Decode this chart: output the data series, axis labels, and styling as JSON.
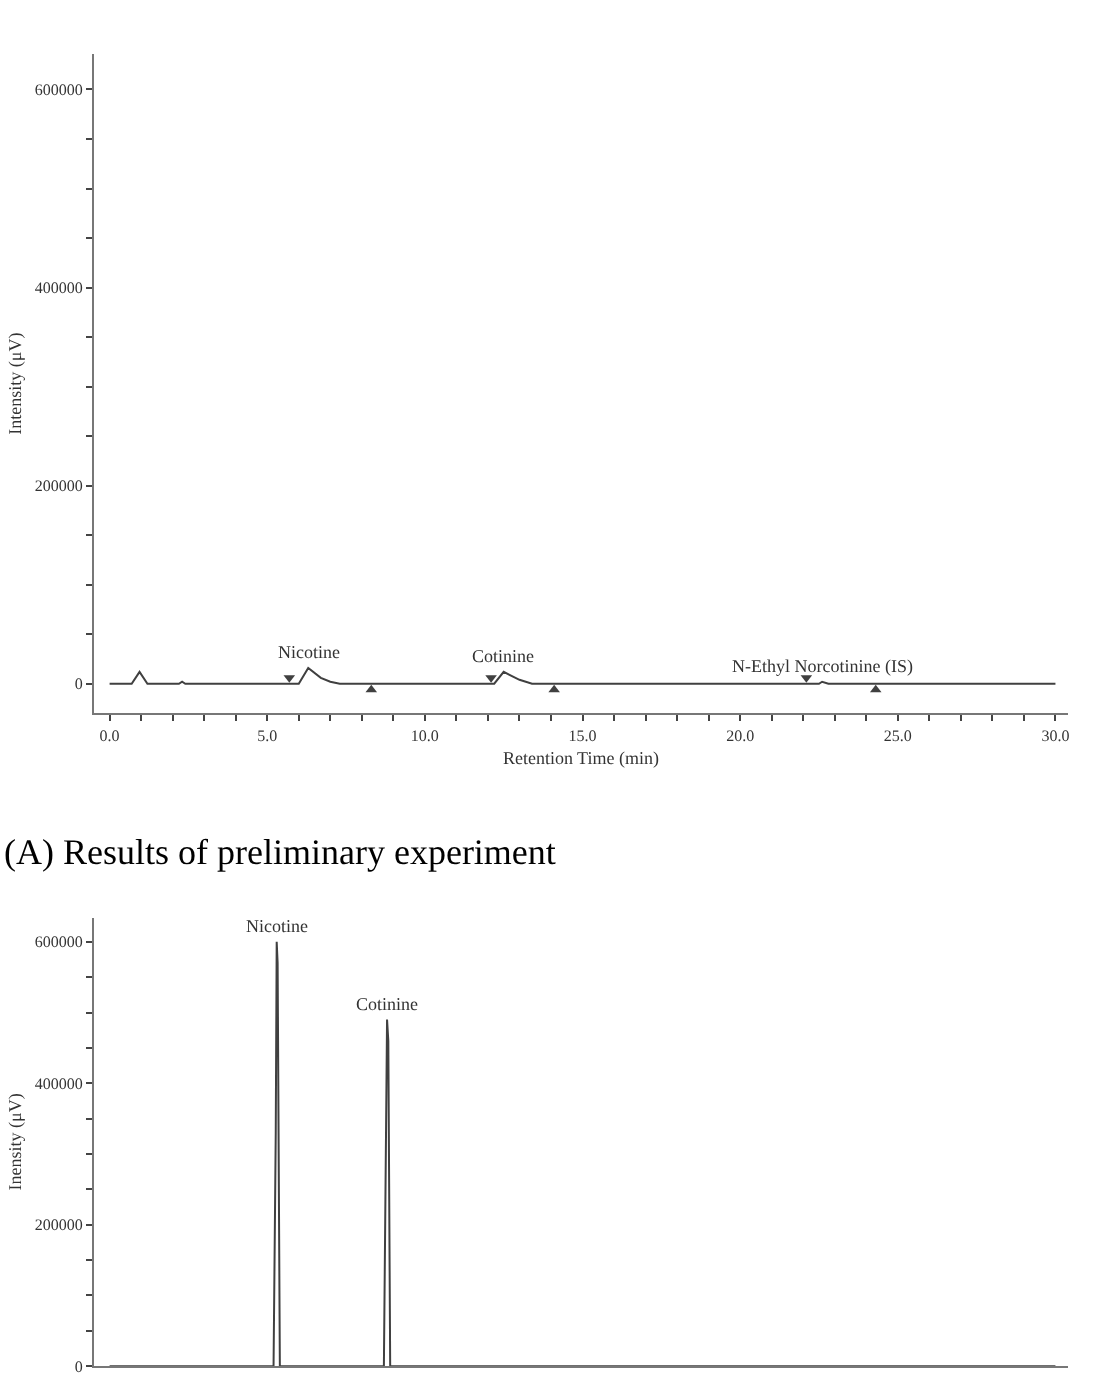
{
  "chart_data": [
    {
      "type": "line",
      "xlabel": "Retention Time (min)",
      "ylabel": "Intensity (μV)",
      "marker": "none",
      "x": [
        0,
        0.7,
        0.95,
        1.2,
        2.2,
        2.3,
        2.4,
        6.0,
        6.3,
        6.7,
        7.0,
        7.3,
        12.2,
        12.5,
        13.0,
        13.4,
        22.5,
        22.6,
        22.8,
        30
      ],
      "series": [
        {
          "color": "#404040",
          "values": [
            0,
            0,
            12000,
            0,
            0,
            2000,
            0,
            0,
            16000,
            6000,
            2000,
            0,
            0,
            12000,
            4000,
            0,
            0,
            2000,
            0,
            0
          ]
        },
        {
          "type": "scatter",
          "marker": "triangle",
          "color": "#404040",
          "x": [
            5.7,
            12.1,
            22.1,
            8.3,
            14.1,
            24.3
          ],
          "values": [
            6000,
            6000,
            6000,
            -6000,
            -6000,
            -6000
          ]
        }
      ],
      "xlim": [
        -0.5,
        30.4
      ],
      "ylim": [
        -30000,
        636000
      ],
      "xticks": [
        {
          "value": 0,
          "label": "0.0"
        },
        {
          "value": 1,
          "label": null
        },
        {
          "value": 2,
          "label": null
        },
        {
          "value": 3,
          "label": null
        },
        {
          "value": 4,
          "label": null
        },
        {
          "value": 5,
          "label": "5.0"
        },
        {
          "value": 6,
          "label": null
        },
        {
          "value": 7,
          "label": null
        },
        {
          "value": 8,
          "label": null
        },
        {
          "value": 9,
          "label": null
        },
        {
          "value": 10,
          "label": "10.0"
        },
        {
          "value": 11,
          "label": null
        },
        {
          "value": 12,
          "label": null
        },
        {
          "value": 13,
          "label": null
        },
        {
          "value": 14,
          "label": null
        },
        {
          "value": 15,
          "label": "15.0"
        },
        {
          "value": 16,
          "label": null
        },
        {
          "value": 17,
          "label": null
        },
        {
          "value": 18,
          "label": null
        },
        {
          "value": 19,
          "label": null
        },
        {
          "value": 20,
          "label": "20.0"
        },
        {
          "value": 21,
          "label": null
        },
        {
          "value": 22,
          "label": null
        },
        {
          "value": 23,
          "label": null
        },
        {
          "value": 24,
          "label": null
        },
        {
          "value": 25,
          "label": "25.0"
        },
        {
          "value": 26,
          "label": null
        },
        {
          "value": 27,
          "label": null
        },
        {
          "value": 28,
          "label": null
        },
        {
          "value": 29,
          "label": null
        },
        {
          "value": 30,
          "label": "30.0"
        }
      ],
      "yticks": [
        0,
        {
          "value": 50000,
          "label": null
        },
        {
          "value": 100000,
          "label": null
        },
        {
          "value": 150000,
          "label": null
        },
        200000,
        {
          "value": 250000,
          "label": null
        },
        {
          "value": 300000,
          "label": null
        },
        {
          "value": 350000,
          "label": null
        },
        400000,
        {
          "value": 450000,
          "label": null
        },
        {
          "value": 500000,
          "label": null
        },
        {
          "value": 550000,
          "label": null
        },
        600000
      ],
      "annotations": [
        {
          "text": "Nicotine",
          "x": 6.3,
          "y": 16000
        },
        {
          "text": "Cotinine",
          "x": 12.5,
          "y": 12000
        },
        {
          "text": "N-Ethyl Norcotinine (IS)",
          "x": 22.6,
          "y": 2000
        },
        "(A) Results of preliminary experiment"
      ]
    },
    {
      "type": "line",
      "ylabel": "Inensity (μV)",
      "marker": "none",
      "tick_labels": "y",
      "x": [
        0,
        5.2,
        5.27,
        5.3,
        5.33,
        5.4,
        8.7,
        8.77,
        8.8,
        8.84,
        8.9,
        30
      ],
      "series": [
        {
          "color": "#404040",
          "values": [
            0,
            0,
            330000,
            600000,
            570000,
            0,
            0,
            340000,
            490000,
            460000,
            0,
            0
          ]
        }
      ],
      "xlim": [
        -0.5,
        30.4
      ],
      "ylim": [
        0,
        634000
      ],
      "yticks": [
        0,
        {
          "value": 50000,
          "label": null
        },
        {
          "value": 100000,
          "label": null
        },
        {
          "value": 150000,
          "label": null
        },
        200000,
        {
          "value": 250000,
          "label": null
        },
        {
          "value": 300000,
          "label": null
        },
        {
          "value": 350000,
          "label": null
        },
        400000,
        {
          "value": 450000,
          "label": null
        },
        {
          "value": 500000,
          "label": null
        },
        {
          "value": 550000,
          "label": null
        },
        600000
      ],
      "annotations": [
        {
          "text": "Nicotine",
          "x": 5.3,
          "y": 600000
        },
        {
          "text": "Cotinine",
          "x": 8.8,
          "y": 490000
        }
      ]
    }
  ]
}
